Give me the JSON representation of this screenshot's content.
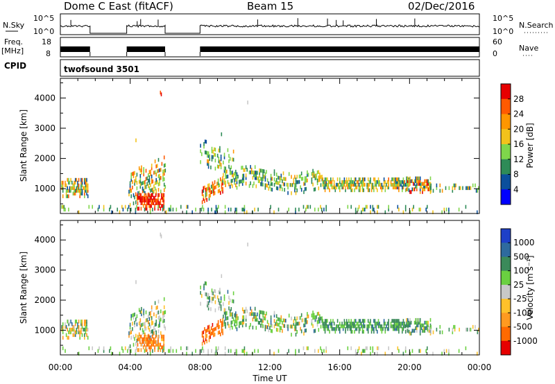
{
  "header": {
    "station": "Dome C East (fitACF)",
    "beam": "Beam 15",
    "date": "02/Dec/2016"
  },
  "strips": {
    "nsky_label": "N.Sky",
    "nsky_ticks": [
      "10^5",
      "10^0"
    ],
    "nsearch_label": "N.Search",
    "nsearch_ticks": [
      "10^5",
      "10^0"
    ],
    "freq_label_1": "Freq.",
    "freq_label_2": "[MHz]",
    "freq_ticks": [
      "18",
      "8"
    ],
    "nave_label": "Nave",
    "nave_ticks": [
      "60",
      "0"
    ],
    "cpid_label": "CPID",
    "cpid_value": "twofsound 3501"
  },
  "chart_data": [
    {
      "type": "heatmap",
      "panel": "power",
      "ylabel": "Slant Range [km]",
      "yticks": [
        "1000",
        "2000",
        "3000",
        "4000"
      ],
      "ylim": [
        180,
        4650
      ],
      "xlim_hours": [
        0,
        24
      ],
      "colorbar_label": "Power [dB]",
      "colorbar_ticks": [
        "28",
        "24",
        "20",
        "16",
        "12",
        "8",
        "4"
      ],
      "colorbar_colors": [
        "#e60000",
        "#ff5a00",
        "#ff9600",
        "#f2c21b",
        "#7fd64b",
        "#2e8b57",
        "#0b4f9c",
        "#0000ff"
      ],
      "data_segments_hours": [
        [
          0.0,
          1.7
        ],
        [
          3.8,
          6.0
        ],
        [
          8.0,
          24.0
        ]
      ]
    },
    {
      "type": "heatmap",
      "panel": "velocity",
      "ylabel": "Slant Range [km]",
      "yticks": [
        "1000",
        "2000",
        "3000",
        "4000"
      ],
      "ylim": [
        180,
        4650
      ],
      "xlim_hours": [
        0,
        24
      ],
      "xlabel": "Time UT",
      "xticks": [
        "00:00",
        "04:00",
        "08:00",
        "12:00",
        "16:00",
        "20:00",
        "00:00"
      ],
      "colorbar_label": "Velocity [m s⁻¹]",
      "colorbar_ticks": [
        "1000",
        "500",
        "100",
        "25",
        "-25",
        "-100",
        "-500",
        "-1000"
      ],
      "colorbar_colors": [
        "#1e40c8",
        "#2e6a9e",
        "#3b8a5a",
        "#6ad040",
        "#c8c8c8",
        "#ffc12a",
        "#ff9a20",
        "#ff6a00",
        "#e60000"
      ],
      "data_segments_hours": [
        [
          0.0,
          1.7
        ],
        [
          3.8,
          6.0
        ],
        [
          8.0,
          24.0
        ]
      ]
    }
  ]
}
